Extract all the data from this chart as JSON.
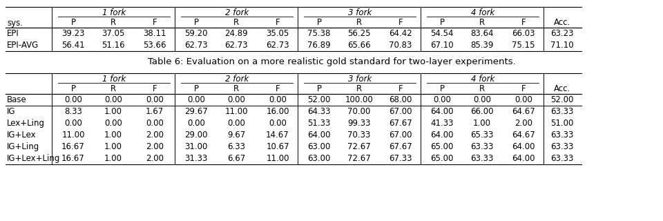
{
  "caption": "Table 6: Evaluation on a more realistic gold standard for two-layer experiments.",
  "top_table": {
    "group_headers": [
      "1 fork",
      "2 fork",
      "3 fork",
      "4 fork"
    ],
    "subheaders": [
      "sys.",
      "P",
      "R",
      "F",
      "P",
      "R",
      "F",
      "P",
      "R",
      "F",
      "P",
      "R",
      "F",
      "Acc."
    ],
    "rows": [
      [
        "EPI",
        "39.23",
        "37.05",
        "38.11",
        "59.20",
        "24.89",
        "35.05",
        "75.38",
        "56.25",
        "64.42",
        "54.54",
        "83.64",
        "66.03",
        "63.23"
      ],
      [
        "EPI-AVG",
        "56.41",
        "51.16",
        "53.66",
        "62.73",
        "62.73",
        "62.73",
        "76.89",
        "65.66",
        "70.83",
        "67.10",
        "85.39",
        "75.15",
        "71.10"
      ]
    ]
  },
  "bottom_table": {
    "group_headers": [
      "1 fork",
      "2 fork",
      "3 fork",
      "4 fork"
    ],
    "subheaders": [
      "",
      "P",
      "R",
      "F",
      "P",
      "R",
      "F",
      "P",
      "R",
      "F",
      "P",
      "R",
      "F",
      "Acc."
    ],
    "rows": [
      [
        "Base",
        "0.00",
        "0.00",
        "0.00",
        "0.00",
        "0.00",
        "0.00",
        "52.00",
        "100.00",
        "68.00",
        "0.00",
        "0.00",
        "0.00",
        "52.00"
      ],
      [
        "IG",
        "8.33",
        "1.00",
        "1.67",
        "29.67",
        "11.00",
        "16.00",
        "64.33",
        "70.00",
        "67.00",
        "64.00",
        "66.00",
        "64.67",
        "63.33"
      ],
      [
        "Lex+Ling",
        "0.00",
        "0.00",
        "0.00",
        "0.00",
        "0.00",
        "0.00",
        "51.33",
        "99.33",
        "67.67",
        "41.33",
        "1.00",
        "2.00",
        "51.00"
      ],
      [
        "IG+Lex",
        "11.00",
        "1.00",
        "2.00",
        "29.00",
        "9.67",
        "14.67",
        "64.00",
        "70.33",
        "67.00",
        "64.00",
        "65.33",
        "64.67",
        "63.33"
      ],
      [
        "IG+Ling",
        "16.67",
        "1.00",
        "2.00",
        "31.00",
        "6.33",
        "10.67",
        "63.00",
        "72.67",
        "67.67",
        "65.00",
        "63.33",
        "64.00",
        "63.33"
      ],
      [
        "IG+Lex+Ling",
        "16.67",
        "1.00",
        "2.00",
        "31.33",
        "6.67",
        "11.00",
        "63.00",
        "72.67",
        "67.33",
        "65.00",
        "63.33",
        "64.00",
        "63.33"
      ]
    ],
    "divider_after_row": 1
  }
}
